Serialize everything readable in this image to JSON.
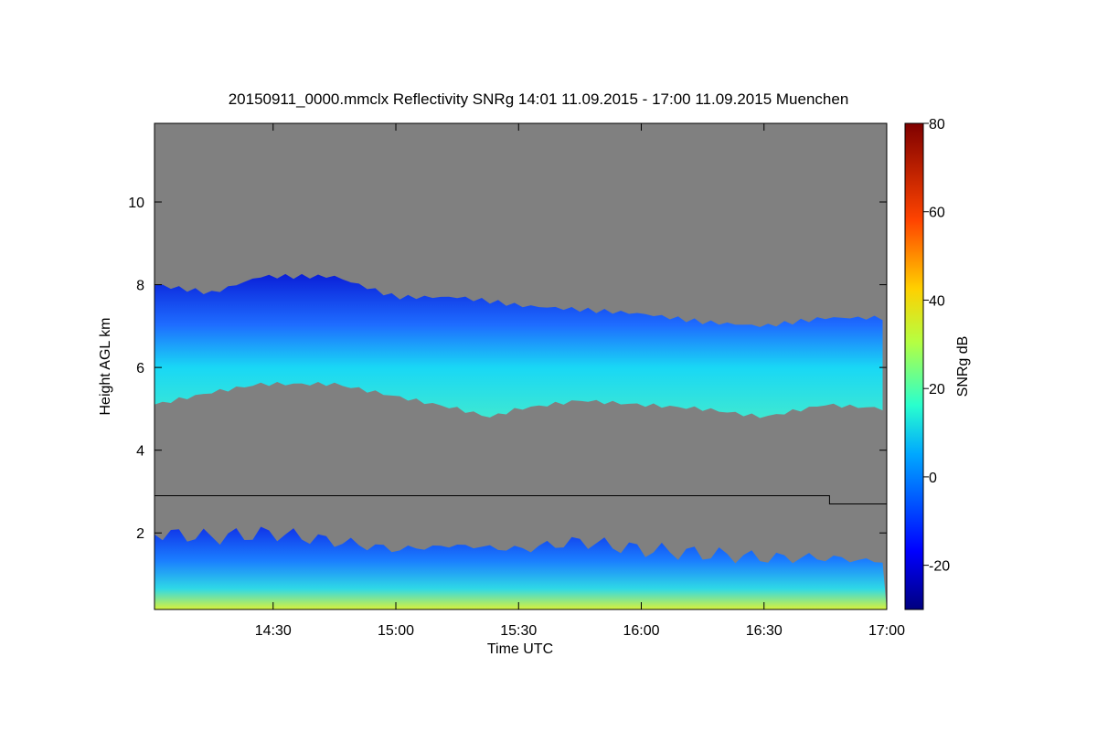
{
  "chart_data": {
    "type": "heatmap",
    "title": "20150911_0000.mmclx Reflectivity SNRg   14:01 11.09.2015 - 17:00 11.09.2015 Muenchen",
    "xlabel": "Time UTC",
    "ylabel": "Height AGL km",
    "colorbar_label": "SNRg dB",
    "x_ticks": [
      "14:30",
      "15:00",
      "15:30",
      "16:00",
      "16:30",
      "17:00"
    ],
    "y_ticks": [
      "2",
      "4",
      "6",
      "8",
      "10"
    ],
    "colorbar_ticks": [
      "-20",
      "0",
      "20",
      "40",
      "60",
      "80"
    ],
    "colorbar_range": [
      -30,
      80
    ],
    "background_color": "#808080",
    "colormap": "jet",
    "cloud_layer": {
      "time_utc": [
        "14:01",
        "14:15",
        "14:27",
        "14:45",
        "15:00",
        "15:15",
        "15:23",
        "15:30",
        "15:45",
        "16:00",
        "16:15",
        "16:30",
        "16:45",
        "17:00"
      ],
      "top_km": [
        8.0,
        7.8,
        8.2,
        8.2,
        7.7,
        7.7,
        7.6,
        7.5,
        7.4,
        7.3,
        7.1,
        7.0,
        7.2,
        7.2
      ],
      "base_km": [
        5.1,
        5.4,
        5.6,
        5.6,
        5.3,
        5.0,
        4.8,
        5.0,
        5.2,
        5.1,
        5.0,
        4.8,
        5.1,
        5.0
      ]
    },
    "boundary_layer_top_km": {
      "time_utc": [
        "14:01",
        "14:15",
        "14:30",
        "14:45",
        "15:00",
        "15:15",
        "15:30",
        "15:45",
        "16:00",
        "16:15",
        "16:30",
        "16:45",
        "17:00"
      ],
      "values": [
        2.0,
        1.9,
        2.0,
        1.8,
        1.6,
        1.7,
        1.6,
        1.8,
        1.6,
        1.5,
        1.4,
        1.4,
        1.3
      ]
    },
    "height_line": {
      "time_utc": [
        "14:01",
        "16:46",
        "16:46",
        "17:00"
      ],
      "height_km": [
        2.9,
        2.9,
        2.7,
        2.7
      ]
    },
    "xlim": [
      "14:01",
      "17:00"
    ],
    "ylim": [
      0.15,
      11.9
    ]
  }
}
